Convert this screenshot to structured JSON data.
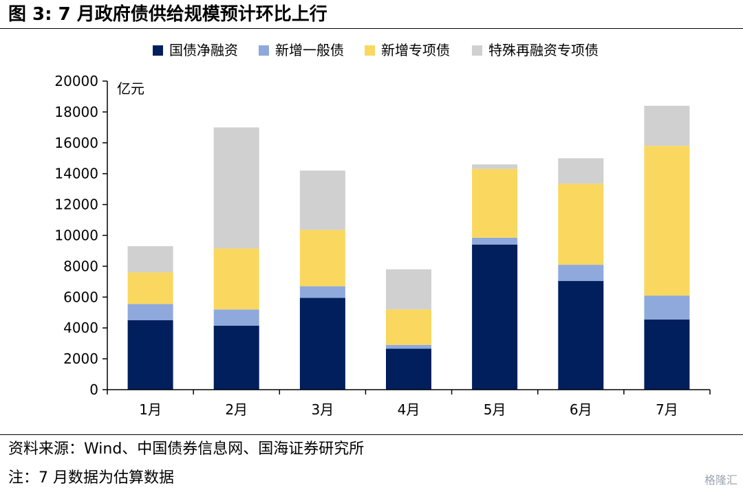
{
  "header": {
    "title": "图 3:  7 月政府债供给规模预计环比上行"
  },
  "footer": {
    "source": "资料来源：Wind、中国债券信息网、国海证券研究所",
    "note": "注：7 月数据为估算数据"
  },
  "watermark": "格隆汇",
  "chart_data": {
    "type": "bar",
    "stacked": true,
    "categories": [
      "1月",
      "2月",
      "3月",
      "4月",
      "5月",
      "6月",
      "7月"
    ],
    "series": [
      {
        "name": "国债净融资",
        "color": "#001f5c",
        "values": [
          4500,
          4150,
          5950,
          2650,
          9400,
          7050,
          4550
        ]
      },
      {
        "name": "新增一般债",
        "color": "#8fa9dc",
        "values": [
          1050,
          1050,
          750,
          250,
          450,
          1050,
          1550
        ]
      },
      {
        "name": "新增专项债",
        "color": "#fad85f",
        "values": [
          2050,
          3950,
          3650,
          2300,
          4450,
          5250,
          9700
        ]
      },
      {
        "name": "特殊再融资专项债",
        "color": "#d0d0d0",
        "values": [
          1700,
          7850,
          3850,
          2600,
          300,
          1650,
          2600
        ]
      }
    ],
    "ylabel": "亿元",
    "ylim": [
      0,
      20000
    ],
    "yticks": [
      0,
      2000,
      4000,
      6000,
      8000,
      10000,
      12000,
      14000,
      16000,
      18000,
      20000
    ],
    "grid": false,
    "legend": "top"
  }
}
